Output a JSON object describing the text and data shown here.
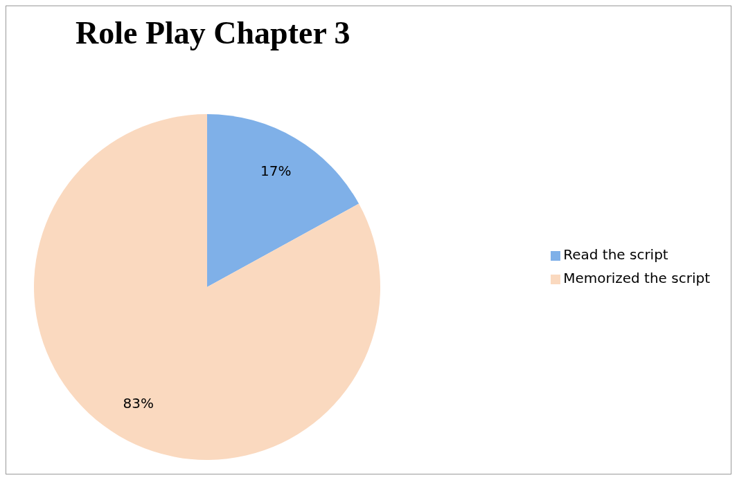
{
  "chart_data": {
    "type": "pie",
    "title": "Role Play Chapter 3",
    "categories": [
      "Read the script",
      "Memorized the script"
    ],
    "values": [
      17,
      83
    ],
    "value_labels": [
      "17%",
      "83%"
    ],
    "colors": [
      "#7fb0e8",
      "#fad9bf"
    ],
    "legend": "right"
  }
}
